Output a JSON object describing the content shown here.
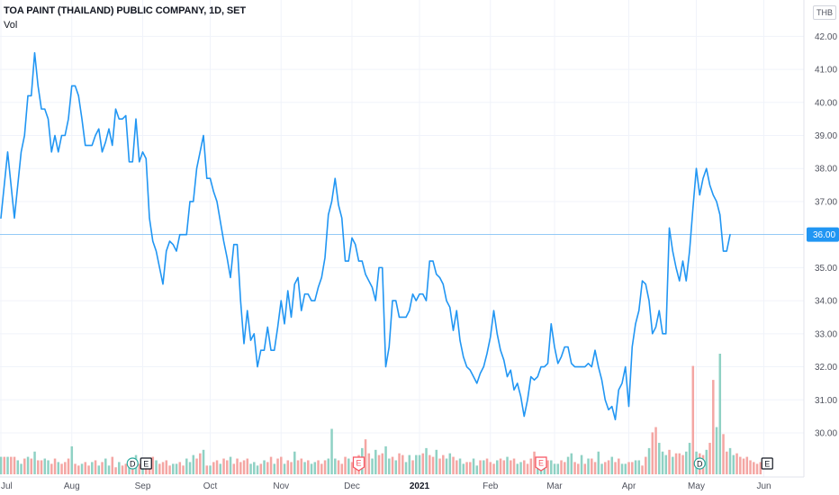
{
  "chart_data": {
    "type": "line",
    "title": "TOA PAINT (THAILAND) PUBLIC COMPANY, 1D, SET",
    "volume_label": "Vol",
    "currency": "THB",
    "last_price": "36.00",
    "ylim": [
      29.4,
      42.2
    ],
    "y_ticks": [
      "30.00",
      "31.00",
      "32.00",
      "33.00",
      "34.00",
      "35.00",
      "36.00",
      "37.00",
      "38.00",
      "39.00",
      "40.00",
      "41.00",
      "42.00"
    ],
    "x_ticks": [
      {
        "label": "Jul",
        "index": 0,
        "bold": false
      },
      {
        "label": "Aug",
        "index": 21,
        "bold": false
      },
      {
        "label": "Sep",
        "index": 42,
        "bold": false
      },
      {
        "label": "Oct",
        "index": 62,
        "bold": false
      },
      {
        "label": "Nov",
        "index": 83,
        "bold": false
      },
      {
        "label": "Dec",
        "index": 104,
        "bold": false
      },
      {
        "label": "2021",
        "index": 124,
        "bold": true
      },
      {
        "label": "Feb",
        "index": 145,
        "bold": false
      },
      {
        "label": "Mar",
        "index": 164,
        "bold": false
      },
      {
        "label": "Apr",
        "index": 186,
        "bold": false
      },
      {
        "label": "May",
        "index": 206,
        "bold": false
      },
      {
        "label": "Jun",
        "index": 226,
        "bold": false
      }
    ],
    "events": [
      {
        "label": "D",
        "shape": "circle",
        "index": 39
      },
      {
        "label": "E",
        "shape": "square",
        "index": 43
      },
      {
        "label": "E",
        "shape": "marker",
        "index": 106
      },
      {
        "label": "E",
        "shape": "marker",
        "index": 160
      },
      {
        "label": "D",
        "shape": "circle",
        "index": 207
      },
      {
        "label": "E",
        "shape": "square",
        "index": 227
      }
    ],
    "colors": {
      "line": "#2196f3",
      "vol_up": "#8fd1c4",
      "vol_down": "#f4a6a3",
      "last_line": "#2196f3",
      "grid": "#f0f3fa",
      "e_marker": "#f7525f"
    },
    "series": [
      {
        "values": [
          36.5,
          37.5,
          38.5,
          37.5,
          36.5,
          37.5,
          38.5,
          39.0,
          40.2,
          40.2,
          41.5,
          40.5,
          39.8,
          39.8,
          39.5,
          38.5,
          39.0,
          38.5,
          39.0,
          39.0,
          39.5,
          40.5,
          40.5,
          40.2,
          39.5,
          38.7,
          38.7,
          38.7,
          39.0,
          39.2,
          38.5,
          38.8,
          39.2,
          38.7,
          39.8,
          39.5,
          39.5,
          39.6,
          38.2,
          38.2,
          39.5,
          38.2,
          38.5,
          38.3,
          36.5,
          35.8,
          35.5,
          35.0,
          34.5,
          35.5,
          35.8,
          35.7,
          35.5,
          36.0,
          36.0,
          36.0,
          37.0,
          37.0,
          38.0,
          38.5,
          39.0,
          37.7,
          37.7,
          37.3,
          37.0,
          36.4,
          35.8,
          35.3,
          34.7,
          35.7,
          35.7,
          34.0,
          32.7,
          33.7,
          32.8,
          33.0,
          32.0,
          32.5,
          32.5,
          33.2,
          32.5,
          32.5,
          33.2,
          34.0,
          33.3,
          34.3,
          33.5,
          34.5,
          34.7,
          33.7,
          34.2,
          34.2,
          34.0,
          34.0,
          34.4,
          34.7,
          35.3,
          36.6,
          37.0,
          37.7,
          36.9,
          36.5,
          35.2,
          35.2,
          35.9,
          35.7,
          35.2,
          35.2,
          34.8,
          34.6,
          34.4,
          34.0,
          35.0,
          35.0,
          32.0,
          32.6,
          34.0,
          34.0,
          33.5,
          33.5,
          33.5,
          33.7,
          34.2,
          34.0,
          34.2,
          34.2,
          34.0,
          35.2,
          35.2,
          34.8,
          34.7,
          34.5,
          34.0,
          33.8,
          33.1,
          33.7,
          32.8,
          32.3,
          32.0,
          31.9,
          31.7,
          31.5,
          31.8,
          32.0,
          32.4,
          32.9,
          33.7,
          33.0,
          32.5,
          32.2,
          31.7,
          31.9,
          31.3,
          31.5,
          31.1,
          30.5,
          31.0,
          31.7,
          31.6,
          31.7,
          32.0,
          32.0,
          32.1,
          33.3,
          32.6,
          32.1,
          32.3,
          32.6,
          32.6,
          32.1,
          32.0,
          32.0,
          32.0,
          32.0,
          32.1,
          32.0,
          32.5,
          32.0,
          31.6,
          31.0,
          30.7,
          30.8,
          30.4,
          31.3,
          31.5,
          32.0,
          30.8,
          32.6,
          33.3,
          33.7,
          34.6,
          34.5,
          34.0,
          33.0,
          33.2,
          33.7,
          33.0,
          33.0,
          36.2,
          35.5,
          35.0,
          34.6,
          35.2,
          34.6,
          35.5,
          36.8,
          38.0,
          37.2,
          37.7,
          38.0,
          37.5,
          37.2,
          37.0,
          36.6,
          35.5,
          35.5,
          36.0
        ]
      }
    ],
    "volume": [
      1,
      1,
      1,
      1,
      1,
      0.8,
      0.6,
      0.9,
      1.0,
      0.9,
      1.3,
      0.8,
      0.8,
      0.9,
      0.8,
      0.6,
      0.9,
      0.7,
      0.6,
      0.7,
      0.9,
      1.6,
      0.6,
      0.5,
      0.6,
      0.7,
      0.5,
      0.7,
      0.8,
      0.5,
      0.7,
      0.9,
      0.5,
      1.0,
      0.4,
      0.7,
      0.5,
      0.6,
      0.7,
      0.6,
      1.1,
      0.6,
      0.5,
      0.4,
      0.9,
      1.0,
      0.8,
      0.6,
      0.7,
      0.8,
      0.5,
      0.6,
      0.6,
      0.7,
      0.5,
      0.9,
      0.7,
      1.1,
      0.9,
      1.2,
      1.4,
      0.5,
      0.5,
      0.7,
      0.8,
      0.6,
      0.9,
      0.8,
      1.0,
      0.6,
      0.9,
      0.7,
      0.8,
      0.9,
      0.6,
      0.7,
      0.5,
      0.6,
      0.8,
      0.7,
      1.0,
      0.6,
      0.9,
      1.0,
      0.6,
      0.8,
      0.7,
      1.3,
      0.8,
      0.9,
      0.7,
      0.8,
      0.6,
      0.7,
      0.8,
      0.6,
      0.8,
      0.9,
      2.6,
      0.9,
      0.8,
      0.6,
      1.0,
      0.9,
      0.7,
      0.9,
      1.1,
      1.5,
      2.0,
      1.2,
      0.9,
      1.4,
      1.1,
      1.2,
      1.6,
      0.9,
      1.0,
      0.8,
      1.2,
      1.1,
      0.7,
      1.1,
      0.8,
      1.1,
      1.1,
      1.2,
      1.5,
      1.1,
      1.0,
      1.4,
      0.9,
      1.1,
      0.9,
      1.2,
      1.0,
      0.8,
      0.9,
      0.6,
      0.7,
      0.7,
      0.9,
      0.5,
      0.8,
      0.8,
      0.9,
      0.7,
      0.6,
      0.8,
      0.9,
      0.8,
      1.0,
      0.8,
      0.9,
      0.6,
      0.7,
      0.8,
      0.6,
      0.9,
      1.3,
      0.7,
      1.0,
      0.9,
      0.8,
      0.8,
      0.6,
      0.6,
      0.8,
      0.7,
      1.0,
      1.2,
      0.7,
      0.6,
      1.1,
      0.6,
      0.9,
      0.9,
      0.7,
      1.3,
      0.6,
      0.7,
      0.8,
      1.0,
      0.7,
      0.9,
      0.6,
      0.6,
      0.7,
      0.7,
      0.8,
      0.8,
      0.5,
      1.0,
      1.5,
      2.4,
      2.7,
      1.8,
      1.3,
      1.1,
      1.4,
      1.0,
      1.2,
      1.2,
      1.1,
      1.3,
      1.8,
      6.2,
      1.3,
      1.2,
      1.1,
      1.4,
      1.8,
      5.4,
      2.7,
      6.9,
      2.3,
      1.3,
      1.5,
      1.1,
      1.2,
      1.0,
      0.9,
      1.0,
      0.8,
      0.7,
      0.6,
      0.7
    ],
    "volume_direction": "ududduudududduuddudddudduddududuudduddudududddudddduudduuuddududdudduddddduuududdudduddudduduuddduuudddudddudduudduududduuduududdudduudduudduududdduddudduudddduuuduuudduuddududduuddudduudduuddudduuududdduududdudduudduudd"
  }
}
